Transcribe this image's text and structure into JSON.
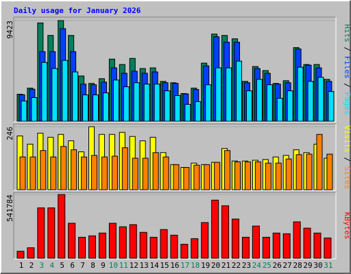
{
  "chart_data": [
    {
      "type": "bar",
      "title": "Daily usage for January 2026",
      "ylim": [
        0,
        9423
      ],
      "yticks": [
        9423
      ],
      "separator": "/",
      "series": [
        {
          "name": "Hits",
          "color": "#00805c",
          "values": [
            2530,
            3099,
            9200,
            8031,
            9423,
            8031,
            4237,
            3541,
            3984,
            5818,
            5312,
            5881,
            4933,
            4996,
            3731,
            3605,
            2593,
            3099,
            5439,
            8158,
            8031,
            7715,
            3731,
            5122,
            4743,
            3541,
            3794,
            6893,
            5312,
            5312,
            3921
          ]
        },
        {
          "name": "Files",
          "color": "#0040ff",
          "values": [
            2480,
            3000,
            6514,
            6514,
            8664,
            6514,
            3478,
            3415,
            3668,
            4996,
            4490,
            4680,
            4490,
            4617,
            3605,
            3541,
            2560,
            2972,
            5186,
            7905,
            7399,
            7399,
            3605,
            4933,
            4490,
            3478,
            3605,
            6767,
            5250,
            4996,
            3731
          ]
        },
        {
          "name": "Pages",
          "color": "#00e0ff",
          "values": [
            1897,
            2213,
            5502,
            4933,
            5692,
            4617,
            2466,
            2466,
            2656,
            3858,
            3225,
            3605,
            3478,
            3478,
            2846,
            2403,
            1581,
            1834,
            3415,
            4996,
            4996,
            5628,
            2846,
            3921,
            3415,
            2150,
            2846,
            5059,
            3731,
            4111,
            2783
          ]
        }
      ]
    },
    {
      "type": "bar",
      "ylim": [
        0,
        246
      ],
      "yticks": [
        246
      ],
      "separator": "/",
      "series": [
        {
          "name": "Visits",
          "color": "#ffff00",
          "values": [
            210,
            178,
            221,
            205,
            216,
            191,
            148,
            246,
            216,
            216,
            224,
            208,
            191,
            205,
            145,
            98,
            87,
            104,
            98,
            107,
            161,
            112,
            112,
            115,
            118,
            128,
            134,
            156,
            145,
            178,
            123
          ]
        },
        {
          "name": "Sites",
          "color": "#ff8000",
          "values": [
            128,
            128,
            153,
            128,
            169,
            156,
            128,
            134,
            128,
            131,
            164,
            123,
            123,
            145,
            128,
            98,
            87,
            96,
            98,
            107,
            153,
            109,
            109,
            109,
            104,
            104,
            120,
            137,
            139,
            216,
            139
          ]
        }
      ]
    },
    {
      "type": "bar",
      "ylim": [
        0,
        541784
      ],
      "yticks": [
        541784
      ],
      "categories": [
        "1",
        "2",
        "3",
        "4",
        "5",
        "6",
        "7",
        "8",
        "9",
        "10",
        "11",
        "12",
        "13",
        "14",
        "15",
        "16",
        "17",
        "18",
        "19",
        "20",
        "21",
        "22",
        "23",
        "24",
        "25",
        "26",
        "27",
        "28",
        "29",
        "30",
        "31"
      ],
      "category_colors": [
        "#000000",
        "#000000",
        "#00805c",
        "#00805c",
        "#000000",
        "#000000",
        "#000000",
        "#000000",
        "#000000",
        "#00805c",
        "#00805c",
        "#000000",
        "#000000",
        "#000000",
        "#000000",
        "#000000",
        "#00805c",
        "#00805c",
        "#000000",
        "#000000",
        "#000000",
        "#000000",
        "#000000",
        "#00805c",
        "#00805c",
        "#000000",
        "#000000",
        "#000000",
        "#000000",
        "#000000",
        "#00805c"
      ],
      "series": [
        {
          "name": "KBytes",
          "color": "#ff0000",
          "values": [
            59540,
            89310,
            428690,
            428690,
            541784,
            297700,
            178620,
            190530,
            214340,
            297700,
            267930,
            285790,
            220300,
            178620,
            244110,
            196480,
            119080,
            166710,
            303650,
            494180,
            446550,
            333420,
            178620,
            273880,
            178620,
            214340,
            208390,
            309600,
            256020,
            214340,
            172670
          ]
        }
      ]
    }
  ]
}
